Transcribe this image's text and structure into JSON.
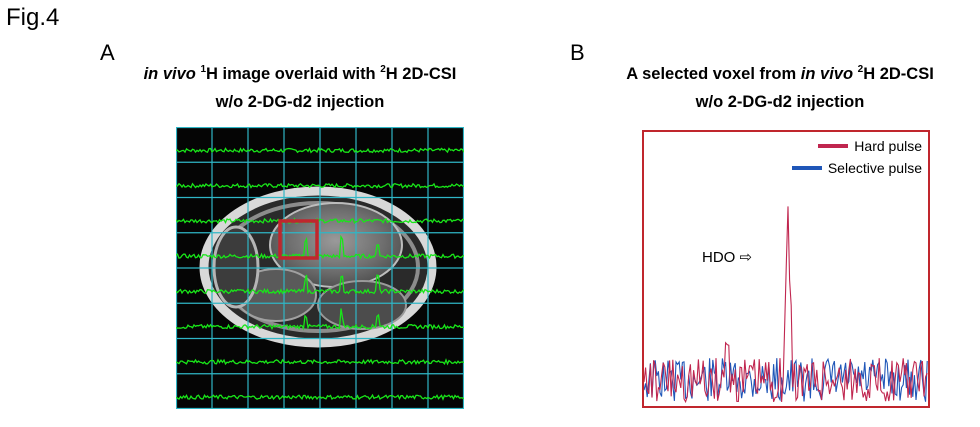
{
  "figure_label": "Fig.4",
  "panel_a": {
    "letter": "A",
    "title_line1_italic": "in vivo",
    "title_line1_sup1": "1",
    "title_line1_mid": "H image overlaid with ",
    "title_line1_sup2": "2",
    "title_line1_end": "H 2D-CSI",
    "title_line2": "w/o 2-DG-d2 injection",
    "colors": {
      "grid": "#2fb6c6",
      "spectra": "#19e619",
      "highlight": "#c0262d"
    }
  },
  "panel_b": {
    "letter": "B",
    "title_line1_start": "A selected voxel from ",
    "title_line1_italic": "in vivo",
    "title_line1_sup": "2",
    "title_line1_end": "H 2D-CSI",
    "title_line2": "w/o 2-DG-d2 injection",
    "peak_label": "HDO ⇨",
    "legend": [
      {
        "label": "Hard pulse",
        "color": "#c0264f"
      },
      {
        "label": "Selective pulse",
        "color": "#1f56b8"
      }
    ]
  }
}
